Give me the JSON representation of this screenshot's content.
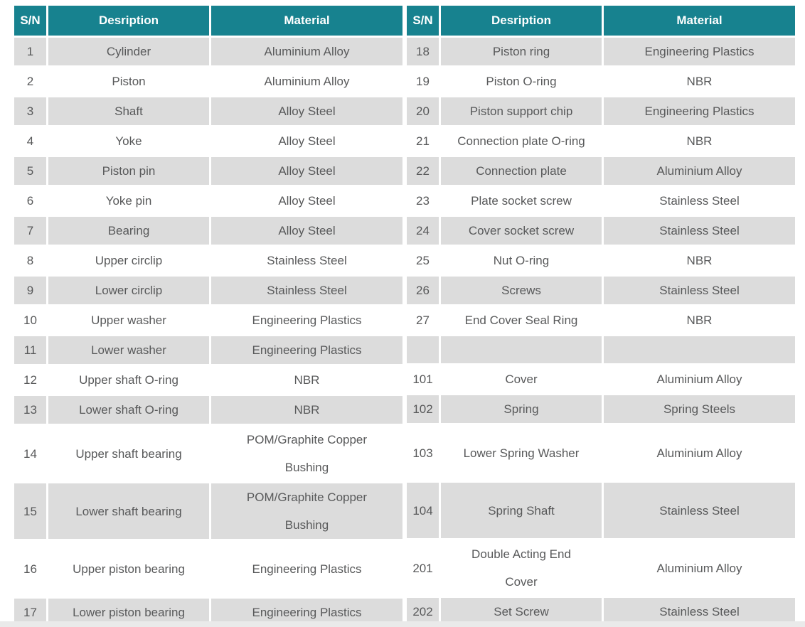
{
  "table": {
    "columns": {
      "sn": "S/N",
      "description": "Desription",
      "material": "Material"
    },
    "tall_rows": [
      13,
      14,
      15
    ],
    "left": {
      "rows": [
        {
          "sn": "1",
          "description": "Cylinder",
          "material": "Aluminium Alloy"
        },
        {
          "sn": "2",
          "description": "Piston",
          "material": "Aluminium Alloy"
        },
        {
          "sn": "3",
          "description": "Shaft",
          "material": "Alloy Steel"
        },
        {
          "sn": "4",
          "description": "Yoke",
          "material": "Alloy Steel"
        },
        {
          "sn": "5",
          "description": "Piston pin",
          "material": "Alloy Steel"
        },
        {
          "sn": "6",
          "description": "Yoke pin",
          "material": "Alloy Steel"
        },
        {
          "sn": "7",
          "description": "Bearing",
          "material": "Alloy Steel"
        },
        {
          "sn": "8",
          "description": "Upper circlip",
          "material": "Stainless Steel"
        },
        {
          "sn": "9",
          "description": "Lower circlip",
          "material": "Stainless Steel"
        },
        {
          "sn": "10",
          "description": "Upper washer",
          "material": "Engineering Plastics"
        },
        {
          "sn": "11",
          "description": "Lower washer",
          "material": "Engineering Plastics"
        },
        {
          "sn": "12",
          "description": "Upper shaft O-ring",
          "material": "NBR"
        },
        {
          "sn": "13",
          "description": "Lower shaft O-ring",
          "material": "NBR"
        },
        {
          "sn": "14",
          "description": "Upper shaft bearing",
          "material": "POM/Graphite Copper\nBushing"
        },
        {
          "sn": "15",
          "description": "Lower shaft bearing",
          "material": "POM/Graphite Copper\nBushing"
        },
        {
          "sn": "16",
          "description": "Upper piston bearing",
          "material": "Engineering Plastics"
        },
        {
          "sn": "17",
          "description": "Lower piston bearing",
          "material": "Engineering Plastics"
        }
      ]
    },
    "right": {
      "rows": [
        {
          "sn": "18",
          "description": "Piston ring",
          "material": "Engineering Plastics"
        },
        {
          "sn": "19",
          "description": "Piston O-ring",
          "material": "NBR"
        },
        {
          "sn": "20",
          "description": "Piston support chip",
          "material": "Engineering Plastics"
        },
        {
          "sn": "21",
          "description": "Connection plate O-ring",
          "material": "NBR"
        },
        {
          "sn": "22",
          "description": "Connection plate",
          "material": "Aluminium Alloy"
        },
        {
          "sn": "23",
          "description": "Plate socket screw",
          "material": "Stainless Steel"
        },
        {
          "sn": "24",
          "description": "Cover socket screw",
          "material": "Stainless Steel"
        },
        {
          "sn": "25",
          "description": "Nut O-ring",
          "material": "NBR"
        },
        {
          "sn": "26",
          "description": "Screws",
          "material": "Stainless Steel"
        },
        {
          "sn": "27",
          "description": "End Cover Seal Ring",
          "material": "NBR"
        },
        {
          "sn": "",
          "description": "",
          "material": ""
        },
        {
          "sn": "101",
          "description": "Cover",
          "material": "Aluminium Alloy"
        },
        {
          "sn": "102",
          "description": "Spring",
          "material": "Spring Steels"
        },
        {
          "sn": "103",
          "description": "Lower Spring Washer",
          "material": "Aluminium Alloy"
        },
        {
          "sn": "104",
          "description": "Spring Shaft",
          "material": "Stainless Steel"
        },
        {
          "sn": "201",
          "description": "Double Acting End\nCover",
          "material": "Aluminium Alloy"
        },
        {
          "sn": "202",
          "description": "Set Screw",
          "material": "Stainless Steel"
        }
      ]
    },
    "colors": {
      "header_bg": "#17828F",
      "header_text": "#FFFFFF",
      "row_alt_bg": "#DCDCDC",
      "row_bg": "#FFFFFF",
      "cell_text": "#58595A",
      "bottom_strip": "#EAEAEA"
    }
  }
}
